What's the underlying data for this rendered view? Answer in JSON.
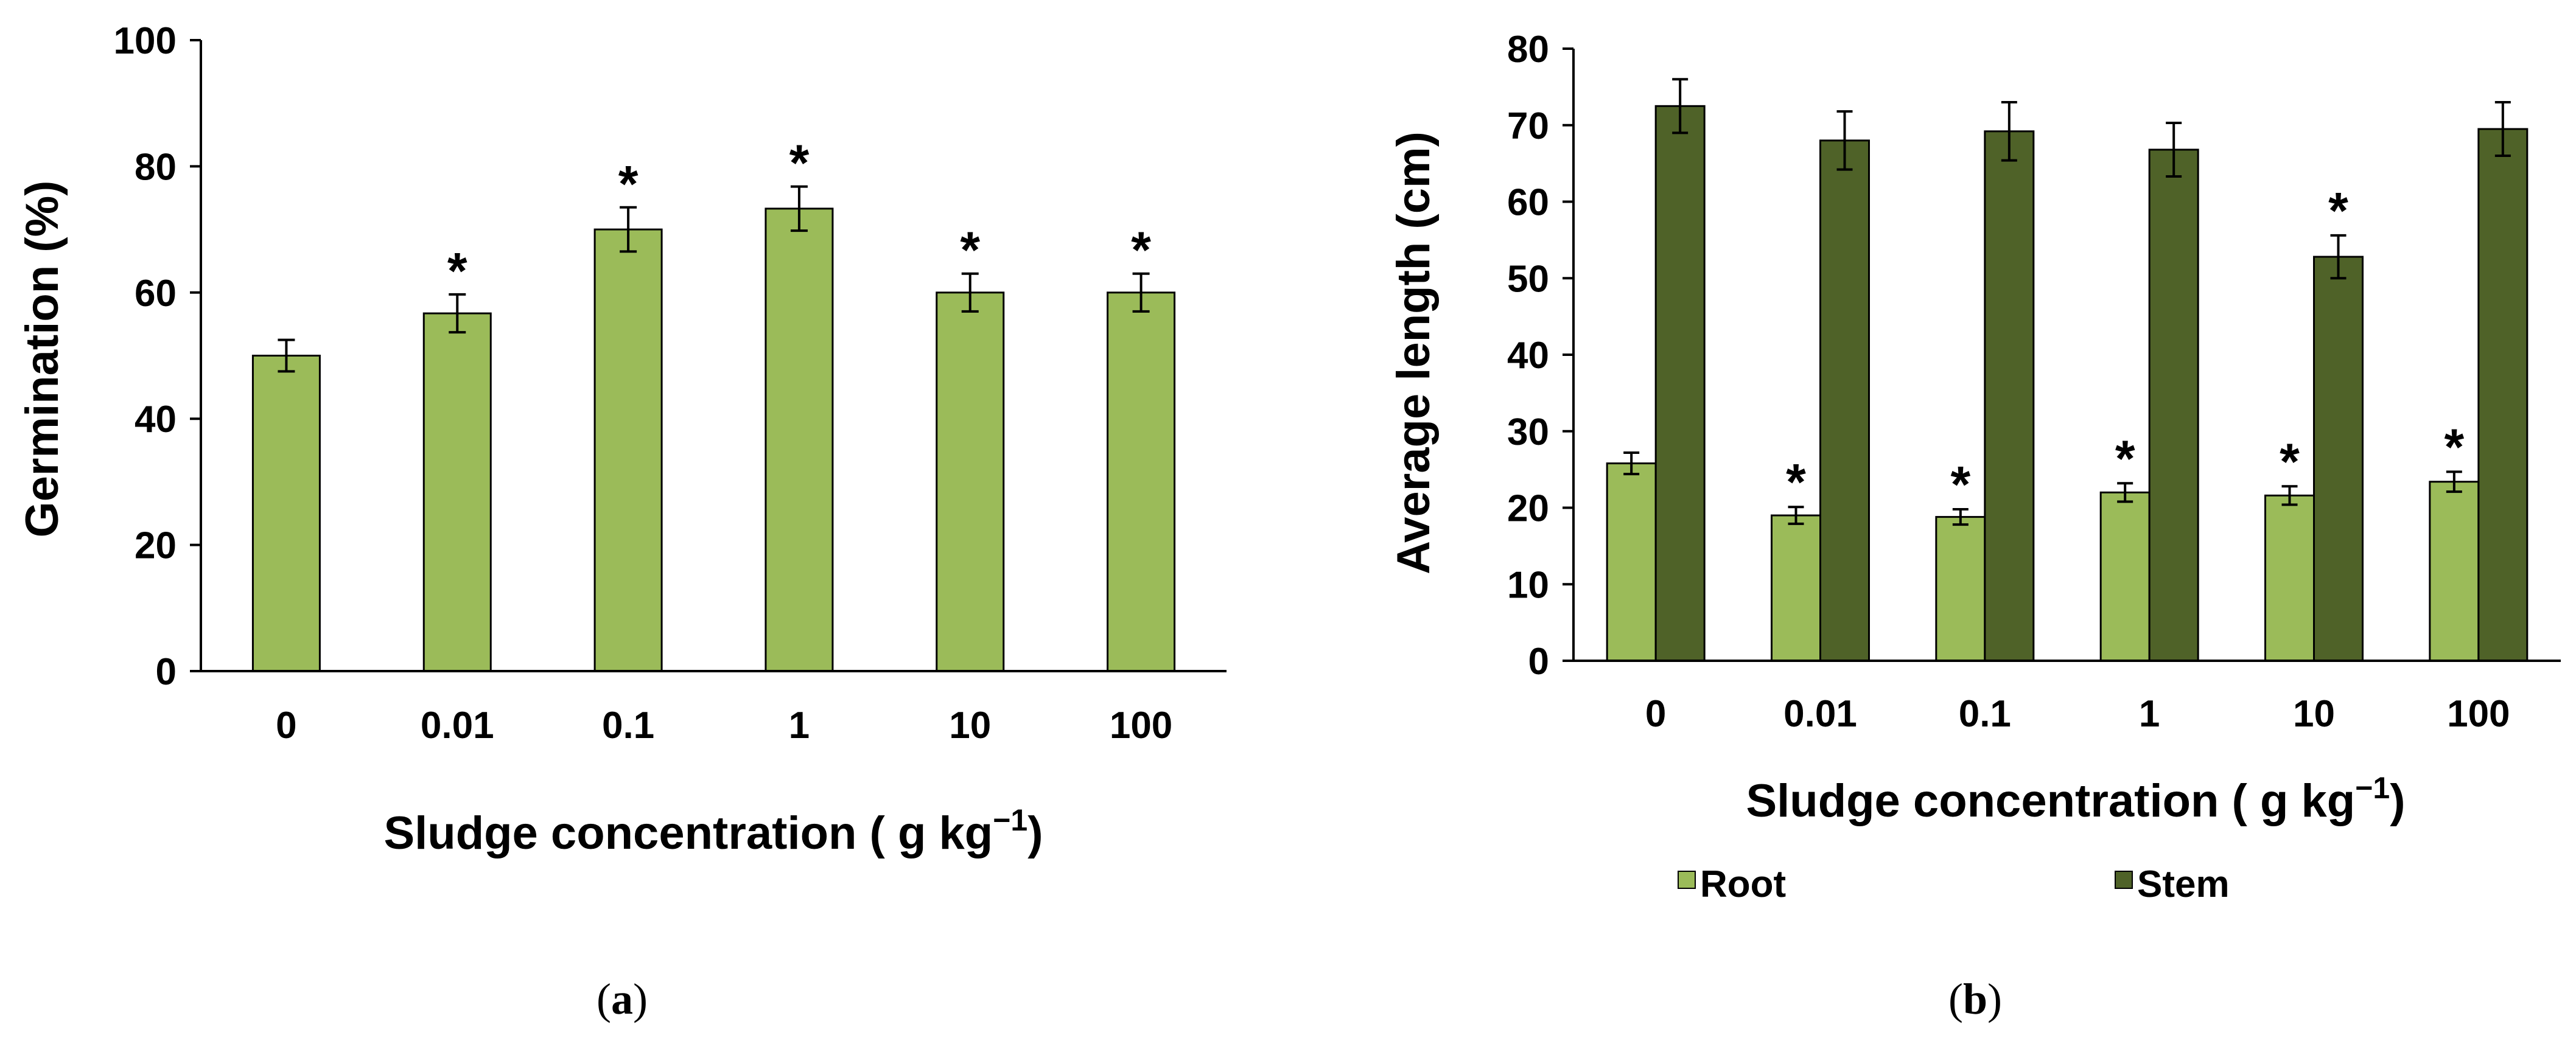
{
  "chart_data": [
    {
      "type": "bar",
      "panel": "a",
      "caption_letter": "a",
      "categories": [
        "0",
        "0.01",
        "0.1",
        "1",
        "10",
        "100"
      ],
      "series": [
        {
          "name": "Germination",
          "values": [
            50,
            56.7,
            70,
            73.3,
            60,
            60
          ],
          "errors": [
            2.5,
            3,
            3.5,
            3.5,
            3,
            3
          ]
        }
      ],
      "significant": [
        false,
        true,
        true,
        true,
        true,
        true
      ],
      "sig_marker": "*",
      "ylabel": "Germination (%)",
      "xlabel": "Sludge concentration ( g kg",
      "xlabel_sup": "−1",
      "xlabel_close": ")",
      "ylim": [
        0,
        100
      ],
      "yticks": [
        "0",
        "20",
        "40",
        "60",
        "80",
        "100"
      ],
      "colors": {
        "bar": "#9bbb59"
      }
    },
    {
      "type": "bar",
      "panel": "b",
      "caption_letter": "b",
      "categories": [
        "0",
        "0.01",
        "0.1",
        "1",
        "10",
        "100"
      ],
      "series": [
        {
          "name": "Root",
          "values": [
            25.8,
            19,
            18.8,
            22,
            21.6,
            23.4
          ],
          "errors": [
            1.4,
            1.1,
            1.0,
            1.2,
            1.2,
            1.3
          ],
          "significant": [
            false,
            true,
            true,
            true,
            true,
            true
          ]
        },
        {
          "name": "Stem",
          "values": [
            72.5,
            68,
            69.2,
            66.8,
            52.8,
            69.5
          ],
          "errors": [
            3.5,
            3.8,
            3.8,
            3.5,
            2.8,
            3.5
          ],
          "significant": [
            false,
            false,
            false,
            false,
            true,
            false
          ]
        }
      ],
      "sig_marker": "*",
      "ylabel": "Average length (cm)",
      "xlabel": "Sludge concentration ( g kg",
      "xlabel_sup": "−1",
      "xlabel_close": ")",
      "ylim": [
        0,
        80
      ],
      "yticks": [
        "0",
        "10",
        "20",
        "30",
        "40",
        "50",
        "60",
        "70",
        "80"
      ],
      "legend": [
        "Root",
        "Stem"
      ],
      "colors": {
        "root": "#9bbb59",
        "stem": "#4f6228"
      }
    }
  ]
}
